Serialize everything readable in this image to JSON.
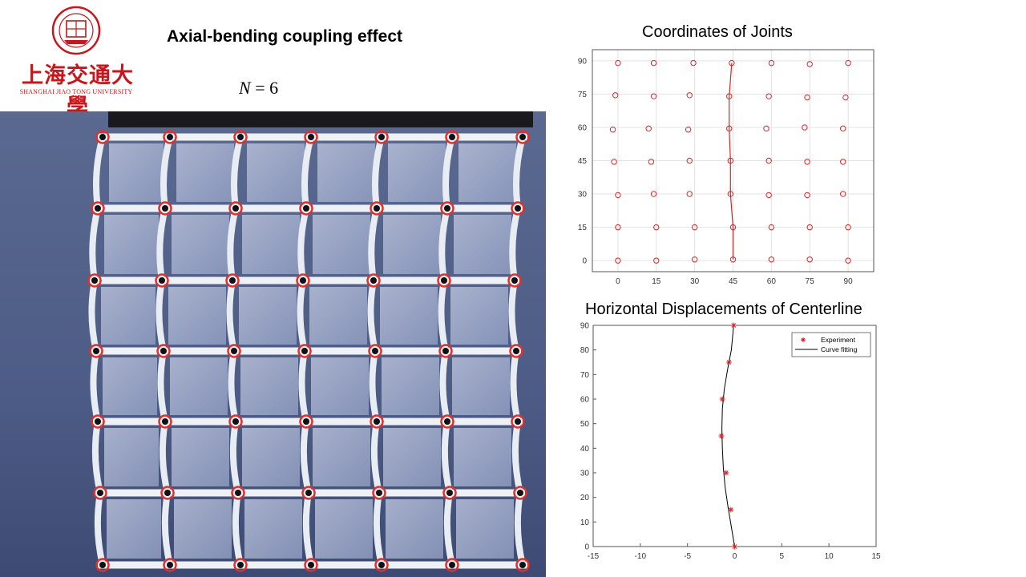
{
  "logo": {
    "cn_text": "上海交通大學",
    "en_text": "SHANGHAI JIAO TONG UNIVERSITY",
    "brand_color": "#c8161d"
  },
  "slide": {
    "title": "Axial-bending coupling effect",
    "equation_var": "N",
    "equation_rest": " = 6"
  },
  "photo": {
    "description_icon": "lattice-specimen-photo",
    "marker_color": "#e0302b",
    "background_color": "#4f5e86"
  },
  "chart_data": [
    {
      "type": "scatter",
      "title": "Coordinates of Joints",
      "xlim": [
        -10,
        100
      ],
      "ylim": [
        -5,
        95
      ],
      "xticks": [
        0,
        15,
        30,
        45,
        60,
        75,
        90
      ],
      "yticks": [
        0,
        15,
        30,
        45,
        60,
        75,
        90
      ],
      "grid": true,
      "marker": "circle",
      "color": "#d62728",
      "points": [
        [
          0,
          0
        ],
        [
          15,
          0
        ],
        [
          30,
          0.5
        ],
        [
          45,
          0.5
        ],
        [
          60,
          0.5
        ],
        [
          75,
          0.5
        ],
        [
          90,
          0
        ],
        [
          0,
          15
        ],
        [
          15,
          15
        ],
        [
          30,
          15
        ],
        [
          45,
          15
        ],
        [
          60,
          15
        ],
        [
          75,
          15
        ],
        [
          90,
          15
        ],
        [
          0,
          29.5
        ],
        [
          14,
          30
        ],
        [
          28,
          30
        ],
        [
          44,
          30
        ],
        [
          59,
          29.5
        ],
        [
          74,
          29.5
        ],
        [
          88,
          30
        ],
        [
          -1.5,
          44.5
        ],
        [
          13,
          44.5
        ],
        [
          28,
          45
        ],
        [
          44,
          45
        ],
        [
          59,
          45
        ],
        [
          74,
          44.5
        ],
        [
          88,
          44.5
        ],
        [
          -2,
          59
        ],
        [
          12,
          59.5
        ],
        [
          27.5,
          59
        ],
        [
          43.5,
          59.5
        ],
        [
          58,
          59.5
        ],
        [
          73,
          60
        ],
        [
          88,
          59.5
        ],
        [
          -1,
          74.5
        ],
        [
          14,
          74
        ],
        [
          28,
          74.5
        ],
        [
          43.5,
          74
        ],
        [
          59,
          74
        ],
        [
          74,
          73.5
        ],
        [
          89,
          73.5
        ],
        [
          0,
          89
        ],
        [
          14,
          89
        ],
        [
          29.5,
          89
        ],
        [
          44.5,
          89
        ],
        [
          60,
          89
        ],
        [
          75,
          88.5
        ],
        [
          90,
          89
        ]
      ],
      "centerline": [
        [
          45,
          0.5
        ],
        [
          45,
          15
        ],
        [
          44,
          30
        ],
        [
          44,
          45
        ],
        [
          43.5,
          59.5
        ],
        [
          43.5,
          74
        ],
        [
          44.5,
          89
        ]
      ]
    },
    {
      "type": "line",
      "title": "Horizontal Displacements of Centerline",
      "xlim": [
        -15,
        15
      ],
      "ylim": [
        0,
        90
      ],
      "xticks": [
        -15,
        -10,
        -5,
        0,
        5,
        10,
        15
      ],
      "yticks": [
        0,
        10,
        20,
        30,
        40,
        50,
        60,
        70,
        80,
        90
      ],
      "grid": false,
      "legend_position": "top-right",
      "series": [
        {
          "name": "Experiment",
          "marker": "asterisk",
          "color": "#d62728",
          "x": [
            0,
            -0.4,
            -0.9,
            -1.4,
            -1.3,
            -0.6,
            -0.1
          ],
          "y": [
            0,
            15,
            30,
            45,
            60,
            75,
            90
          ]
        },
        {
          "name": "Curve fitting",
          "color": "#000000",
          "x": [
            0,
            -0.35,
            -0.7,
            -1.0,
            -1.2,
            -1.3,
            -1.35,
            -1.3,
            -1.1,
            -0.75,
            -0.35,
            -0.1
          ],
          "y": [
            0,
            8,
            16,
            24,
            32,
            40,
            48,
            56,
            64,
            72,
            80,
            90
          ]
        }
      ]
    }
  ]
}
